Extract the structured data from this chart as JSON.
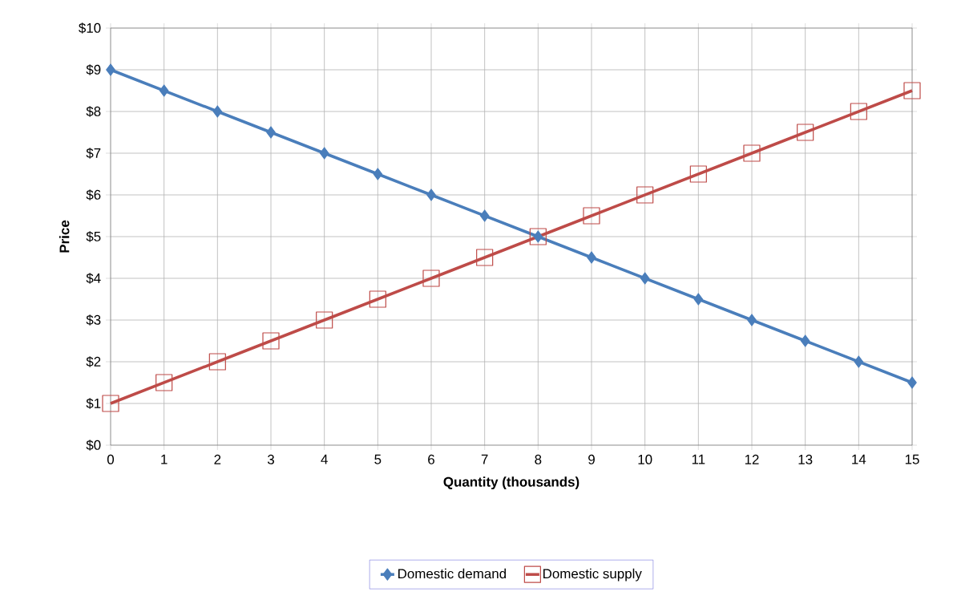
{
  "chart_data": {
    "type": "line",
    "xlabel": "Quantity (thousands)",
    "ylabel": "Price",
    "x": [
      0,
      1,
      2,
      3,
      4,
      5,
      6,
      7,
      8,
      9,
      10,
      11,
      12,
      13,
      14,
      15
    ],
    "series": [
      {
        "name": "Domestic demand",
        "color": "#4a7ebb",
        "marker": "diamond",
        "values": [
          9,
          8.5,
          8,
          7.5,
          7,
          6.5,
          6,
          5.5,
          5,
          4.5,
          4,
          3.5,
          3,
          2.5,
          2,
          1.5
        ]
      },
      {
        "name": "Domestic supply",
        "color": "#be4b48",
        "marker": "square",
        "values": [
          1,
          1.5,
          2,
          2.5,
          3,
          3.5,
          4,
          4.5,
          5,
          5.5,
          6,
          6.5,
          7,
          7.5,
          8,
          8.5
        ]
      }
    ],
    "xlim": [
      0,
      15
    ],
    "xticks": [
      0,
      1,
      2,
      3,
      4,
      5,
      6,
      7,
      8,
      9,
      10,
      11,
      12,
      13,
      14,
      15
    ],
    "ylim": [
      0,
      10
    ],
    "yticks": [
      {
        "value": 0,
        "label": "$0"
      },
      {
        "value": 1,
        "label": "$1"
      },
      {
        "value": 2,
        "label": "$2"
      },
      {
        "value": 3,
        "label": "$3"
      },
      {
        "value": 4,
        "label": "$4"
      },
      {
        "value": 5,
        "label": "$5"
      },
      {
        "value": 6,
        "label": "$6"
      },
      {
        "value": 7,
        "label": "$7"
      },
      {
        "value": 8,
        "label": "$8"
      },
      {
        "value": 9,
        "label": "$9"
      },
      {
        "value": 10,
        "label": "$10"
      }
    ],
    "grid": true,
    "legend": "bottom",
    "line_style": "solid"
  }
}
